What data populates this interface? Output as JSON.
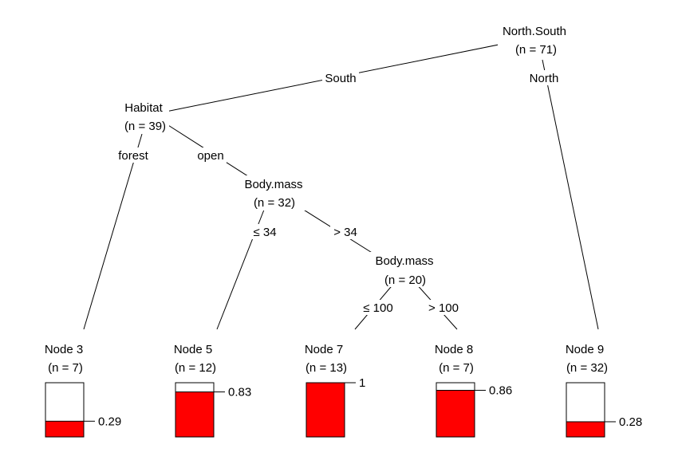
{
  "tree": {
    "inner_nodes": [
      {
        "id": "root",
        "variable": "North.South",
        "count": "(n = 71)"
      },
      {
        "id": "habitat",
        "variable": "Habitat",
        "count": "(n = 39)"
      },
      {
        "id": "bodymass1",
        "variable": "Body.mass",
        "count": "(n = 32)"
      },
      {
        "id": "bodymass2",
        "variable": "Body.mass",
        "count": "(n = 20)"
      }
    ],
    "edge_labels": [
      {
        "id": "south",
        "text": "South"
      },
      {
        "id": "north",
        "text": "North"
      },
      {
        "id": "forest",
        "text": "forest"
      },
      {
        "id": "open",
        "text": "open"
      },
      {
        "id": "le34",
        "text": "≤ 34"
      },
      {
        "id": "gt34",
        "text": "> 34"
      },
      {
        "id": "le100",
        "text": "≤ 100"
      },
      {
        "id": "gt100",
        "text": "> 100"
      }
    ],
    "terminal_nodes": [
      {
        "id": "node3",
        "label": "Node 3",
        "count": "(n = 7)",
        "proportion": 0.29,
        "value_label": "0.29"
      },
      {
        "id": "node5",
        "label": "Node 5",
        "count": "(n = 12)",
        "proportion": 0.83,
        "value_label": "0.83"
      },
      {
        "id": "node7",
        "label": "Node 7",
        "count": "(n = 13)",
        "proportion": 1.0,
        "value_label": "1"
      },
      {
        "id": "node8",
        "label": "Node 8",
        "count": "(n = 7)",
        "proportion": 0.86,
        "value_label": "0.86"
      },
      {
        "id": "node9",
        "label": "Node 9",
        "count": "(n = 32)",
        "proportion": 0.28,
        "value_label": "0.28"
      }
    ],
    "colors": {
      "bar_fill": "#ff0000",
      "box_stroke": "#000000",
      "line": "#000000"
    }
  }
}
